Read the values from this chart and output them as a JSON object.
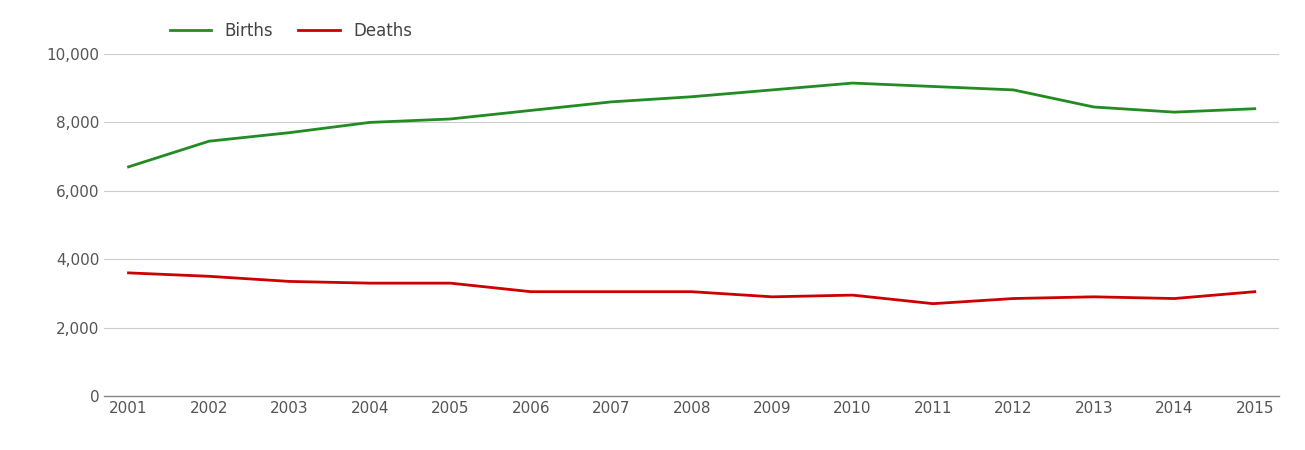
{
  "years": [
    2001,
    2002,
    2003,
    2004,
    2005,
    2006,
    2007,
    2008,
    2009,
    2010,
    2011,
    2012,
    2013,
    2014,
    2015
  ],
  "births": [
    6700,
    7450,
    7700,
    8000,
    8100,
    8350,
    8600,
    8750,
    8950,
    9150,
    9050,
    8950,
    8450,
    8300,
    8400
  ],
  "deaths": [
    3600,
    3500,
    3350,
    3300,
    3300,
    3050,
    3050,
    3050,
    2900,
    2950,
    2700,
    2850,
    2900,
    2850,
    3050
  ],
  "births_color": "#228B22",
  "deaths_color": "#cc0000",
  "line_width": 2.0,
  "ylim": [
    0,
    10000
  ],
  "yticks": [
    0,
    2000,
    4000,
    6000,
    8000,
    10000
  ],
  "xlabel": "",
  "ylabel": "",
  "legend_labels": [
    "Births",
    "Deaths"
  ],
  "background_color": "#ffffff",
  "grid_color": "#cccccc",
  "tick_label_color": "#555555",
  "tick_label_fontsize": 11,
  "legend_text_color": "#444444"
}
